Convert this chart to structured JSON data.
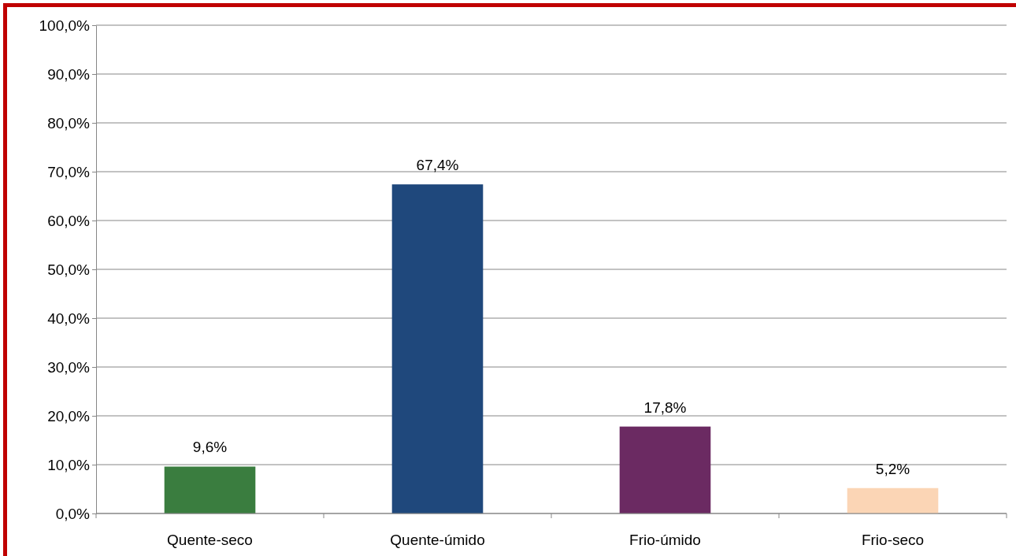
{
  "chart_data": {
    "type": "bar",
    "categories": [
      "Quente-seco",
      "Quente-úmido",
      "Frio-úmido",
      "Frio-seco"
    ],
    "values": [
      9.6,
      67.4,
      17.8,
      5.2
    ],
    "colors": [
      "#3a7d3f",
      "#1f487c",
      "#6b2a62",
      "#fbd5b5"
    ],
    "value_labels": [
      "9,6%",
      "67,4%",
      "17,8%",
      "5,2%"
    ],
    "ylim": [
      0,
      100
    ],
    "yticks": [
      {
        "value": 0,
        "label": "0,0%"
      },
      {
        "value": 10,
        "label": "10,0%"
      },
      {
        "value": 20,
        "label": "20,0%"
      },
      {
        "value": 30,
        "label": "30,0%"
      },
      {
        "value": 40,
        "label": "40,0%"
      },
      {
        "value": 50,
        "label": "50,0%"
      },
      {
        "value": 60,
        "label": "60,0%"
      },
      {
        "value": 70,
        "label": "70,0%"
      },
      {
        "value": 80,
        "label": "80,0%"
      },
      {
        "value": 90,
        "label": "90,0%"
      },
      {
        "value": 100,
        "label": "100,0%"
      }
    ],
    "grid": "y"
  }
}
